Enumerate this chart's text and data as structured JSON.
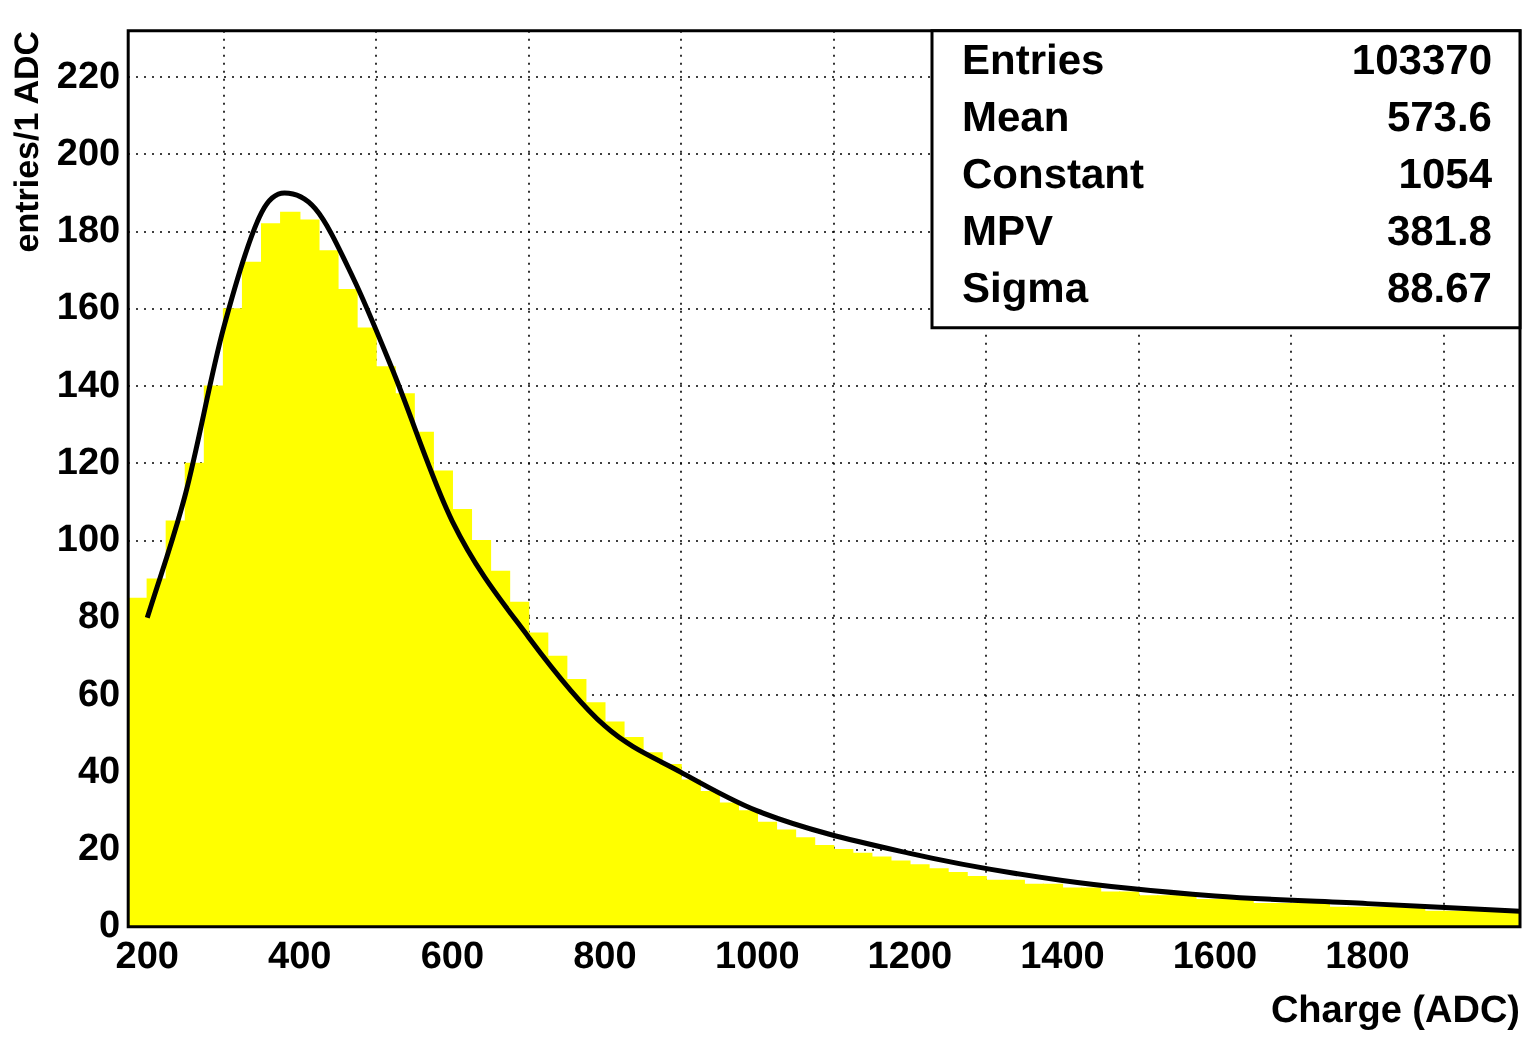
{
  "chart_data": {
    "type": "histogram",
    "xlabel": "Charge (ADC)",
    "ylabel": "entries/1 ADC",
    "bins": [
      175,
      200,
      225,
      250,
      275,
      300,
      325,
      350,
      375,
      400,
      425,
      450,
      475,
      500,
      525,
      550,
      575,
      600,
      625,
      650,
      675,
      700,
      725,
      750,
      775,
      800,
      825,
      850,
      875,
      900,
      925,
      950,
      975,
      1000,
      1025,
      1050,
      1075,
      1100,
      1125,
      1150,
      1175,
      1200,
      1225,
      1250,
      1275,
      1300,
      1325,
      1350,
      1375,
      1400,
      1425,
      1450,
      1475,
      1500,
      1525,
      1550,
      1575,
      1600,
      1625,
      1650,
      1675,
      1700,
      1725,
      1750,
      1775,
      1800,
      1825,
      1850,
      1875,
      1900,
      1925,
      1950,
      1975,
      2000
    ],
    "values": [
      85,
      90,
      105,
      120,
      140,
      160,
      172,
      182,
      185,
      183,
      175,
      165,
      155,
      145,
      138,
      128,
      118,
      108,
      100,
      92,
      84,
      76,
      70,
      64,
      58,
      53,
      49,
      45,
      42,
      38,
      35,
      32,
      30,
      27,
      25,
      23,
      21,
      20,
      19,
      18,
      17,
      16,
      15,
      14,
      13,
      12,
      12,
      11,
      11,
      10,
      10,
      9,
      9,
      8,
      8,
      8,
      7,
      7,
      7,
      6,
      6,
      6,
      6,
      5,
      5,
      5,
      5,
      5,
      4,
      4,
      4,
      4,
      4
    ],
    "color": "#ffff00",
    "series": [
      {
        "type": "line",
        "color": "#000000",
        "x": [
          200,
          250,
          300,
          350,
          380,
          420,
          470,
          520,
          600,
          700,
          800,
          900,
          1000,
          1200,
          1400,
          1600,
          1800,
          2000
        ],
        "values": [
          80,
          112,
          155,
          185,
          190,
          186,
          168,
          145,
          105,
          75,
          52,
          40,
          30,
          19,
          12,
          8,
          6,
          4
        ]
      }
    ],
    "xlim": [
      175,
      2000
    ],
    "ylim": [
      0,
      232
    ],
    "xticks": [
      200,
      400,
      600,
      800,
      1000,
      1200,
      1400,
      1600,
      1800
    ],
    "yticks": [
      0,
      20,
      40,
      60,
      80,
      100,
      120,
      140,
      160,
      180,
      200,
      220
    ],
    "grid": true,
    "legend": false,
    "marker": "none",
    "line_style": "solid",
    "annotations": [
      "Entries",
      "103370",
      "Mean",
      "573.6",
      "Constant",
      "1054",
      "MPV",
      "381.8",
      "Sigma",
      "88.67"
    ]
  }
}
